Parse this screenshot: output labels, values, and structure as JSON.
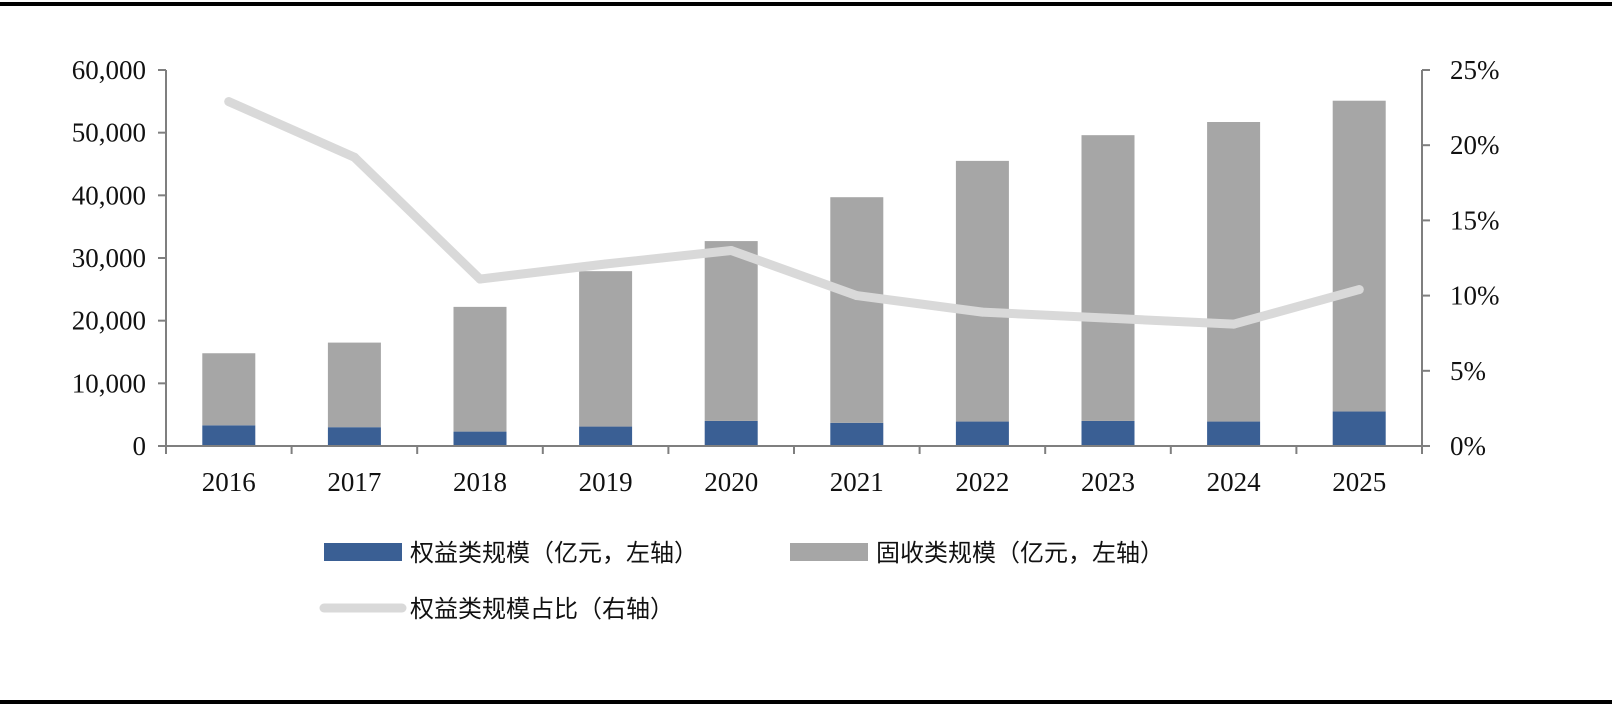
{
  "chart_data": {
    "type": "bar",
    "stacked": true,
    "categories": [
      "2016",
      "2017",
      "2018",
      "2019",
      "2020",
      "2021",
      "2022",
      "2023",
      "2024",
      "2025"
    ],
    "series": [
      {
        "name": "权益类规模（亿元，左轴）",
        "type": "bar",
        "axis": "left",
        "color": "#3a5f94",
        "values": [
          3300,
          3000,
          2300,
          3100,
          4000,
          3700,
          3900,
          4000,
          3900,
          5500
        ]
      },
      {
        "name": "固收类规模（亿元，左轴）",
        "type": "bar",
        "axis": "left",
        "color": "#a6a6a6",
        "values": [
          11500,
          13500,
          19900,
          24800,
          28700,
          36000,
          41600,
          45600,
          47800,
          49600
        ]
      },
      {
        "name": "权益类规模占比（右轴）",
        "type": "line",
        "axis": "right",
        "color": "#d9d9d9",
        "values": [
          22.9,
          19.2,
          11.1,
          12.1,
          13.0,
          10.0,
          8.9,
          8.5,
          8.1,
          10.4
        ]
      }
    ],
    "y_left": {
      "range": [
        0,
        60000
      ],
      "ticks": [
        0,
        10000,
        20000,
        30000,
        40000,
        50000,
        60000
      ],
      "tick_labels": [
        "0",
        "10,000",
        "20,000",
        "30,000",
        "40,000",
        "50,000",
        "60,000"
      ]
    },
    "y_right": {
      "range": [
        0,
        25
      ],
      "ticks": [
        0,
        5,
        10,
        15,
        20,
        25
      ],
      "tick_labels": [
        "0%",
        "5%",
        "10%",
        "15%",
        "20%",
        "25%"
      ]
    },
    "grid": false,
    "legend_position": "bottom"
  }
}
